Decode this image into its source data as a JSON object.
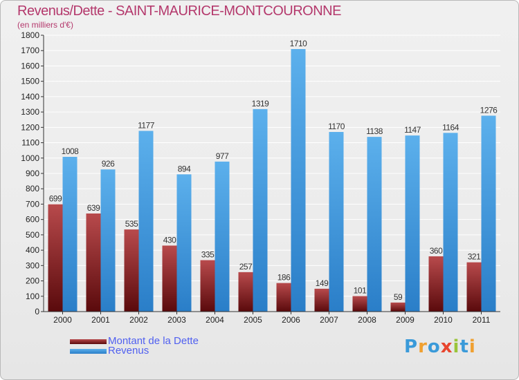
{
  "title": "Revenus/Dette - SAINT-MAURICE-MONTCOURONNE",
  "subtitle": "(en milliers d'€)",
  "logo": {
    "text": "Proxiti",
    "letters": [
      {
        "ch": "P",
        "color": "#3a9ad9"
      },
      {
        "ch": "r",
        "color": "#f0a030"
      },
      {
        "ch": "o",
        "color": "#3a9ad9"
      },
      {
        "ch": "x",
        "color": "#e8452e"
      },
      {
        "ch": "i",
        "color": "#9ac43a"
      },
      {
        "ch": "t",
        "color": "#3a9ad9"
      },
      {
        "ch": "i",
        "color": "#f0a030"
      }
    ]
  },
  "colors": {
    "dette_dark": "#5a0a0c",
    "dette_light": "#b84a4c",
    "revenus_dark": "#2a7ec8",
    "revenus_light": "#5cb0ec",
    "axis": "#333333",
    "grid": "#ffffff"
  },
  "chart_data": {
    "type": "bar",
    "title": "Revenus/Dette - SAINT-MAURICE-MONTCOURONNE",
    "ylabel": "(en milliers d'€)",
    "xlabel": "",
    "categories": [
      "2000",
      "2001",
      "2002",
      "2003",
      "2004",
      "2005",
      "2006",
      "2007",
      "2008",
      "2009",
      "2010",
      "2011"
    ],
    "ylim": [
      0,
      1800
    ],
    "yticks": [
      0,
      100,
      200,
      300,
      400,
      500,
      600,
      700,
      800,
      900,
      1000,
      1100,
      1200,
      1300,
      1400,
      1500,
      1600,
      1700,
      1800
    ],
    "grid": true,
    "legend_position": "bottom-left",
    "series": [
      {
        "name": "Montant de la Dette",
        "values": [
          699,
          639,
          535,
          430,
          335,
          257,
          186,
          149,
          101,
          59,
          360,
          321
        ]
      },
      {
        "name": "Revenus",
        "values": [
          1008,
          926,
          1177,
          894,
          977,
          1319,
          1710,
          1170,
          1138,
          1147,
          1164,
          1276
        ]
      }
    ]
  }
}
